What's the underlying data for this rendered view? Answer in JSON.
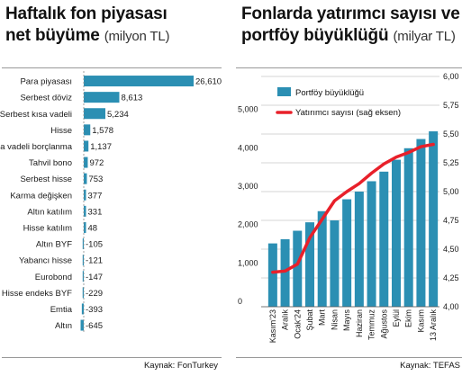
{
  "charts": {
    "left": {
      "title_line1": "Haftalık fon piyasası",
      "title_line2": "net büyüme",
      "title_unit": "(milyon TL)",
      "source": "Kaynak: FonTurkey"
    },
    "right": {
      "title_line1": "Fonlarda yatırımcı sayısı ve",
      "title_line2": "portföy büyüklüğü",
      "title_unit": "(milyar TL)",
      "source": "Kaynak: TEFAS"
    }
  },
  "chart_data": [
    {
      "type": "bar",
      "orientation": "horizontal",
      "title": "Haftalık fon piyasası net büyüme (milyon TL)",
      "categories": [
        "Para piyasası",
        "Serbest döviz",
        "Serbest kısa vadeli",
        "Hisse",
        "Kısa vadeli borçlanma",
        "Tahvil bono",
        "Serbest hisse",
        "Karma değişken",
        "Altın katılım",
        "Hisse katılım",
        "Altın BYF",
        "Yabancı hisse",
        "Eurobond",
        "Hisse endeks BYF",
        "Emtia",
        "Altın"
      ],
      "values": [
        26610,
        8613,
        5234,
        1578,
        1137,
        972,
        753,
        377,
        331,
        48,
        -105,
        -121,
        -147,
        -229,
        -393,
        -645
      ],
      "value_labels": [
        "26,610",
        "8,613",
        "5,234",
        "1,578",
        "1,137",
        "972",
        "753",
        "377",
        "331",
        "48",
        "-105",
        "-121",
        "-147",
        "-229",
        "-393",
        "-645"
      ],
      "bar_color": "#2b8fb3",
      "source": "Kaynak: FonTurkey"
    },
    {
      "type": "bar+line",
      "title": "Fonlarda yatırımcı sayısı ve portföy büyüklüğü (milyar TL)",
      "categories": [
        "Kasım'23",
        "Aralık",
        "Ocak'24",
        "Şubat",
        "Mart",
        "Nisan",
        "Mayıs",
        "Haziran",
        "Temmuz",
        "Ağustos",
        "Eylül",
        "Ekim",
        "Kasım",
        "13 Aralık"
      ],
      "series": [
        {
          "name": "Portföy büyüklüğü",
          "type": "bar",
          "axis": "left",
          "color": "#2b8fb3",
          "values": [
            1650,
            1760,
            1980,
            2200,
            2490,
            2250,
            2800,
            3000,
            3270,
            3520,
            3830,
            4130,
            4370,
            4570
          ]
        },
        {
          "name": "Yatırımcı sayısı (sağ eksen)",
          "type": "line",
          "axis": "right",
          "color": "#e8202a",
          "values": [
            4.3,
            4.31,
            4.37,
            4.6,
            4.76,
            4.92,
            5.0,
            5.07,
            5.16,
            5.24,
            5.3,
            5.34,
            5.39,
            5.41
          ]
        }
      ],
      "y_left": {
        "min": 0,
        "max": 6000,
        "ticks": [
          0,
          1000,
          2000,
          3000,
          4000,
          5000
        ],
        "tick_labels": [
          "0",
          "1,000",
          "2,000",
          "3,000",
          "4,000",
          "5,000"
        ]
      },
      "y_right": {
        "min": 4.0,
        "max": 6.0,
        "ticks": [
          4.0,
          4.25,
          4.5,
          4.75,
          5.0,
          5.25,
          5.5,
          5.75,
          6.0
        ],
        "tick_labels": [
          "4,00",
          "4,25",
          "4,50",
          "4,75",
          "5,00",
          "5,25",
          "5,50",
          "5,75",
          "6,00"
        ]
      },
      "grid": true,
      "legend_position": "top-left",
      "source": "Kaynak: TEFAS"
    }
  ]
}
